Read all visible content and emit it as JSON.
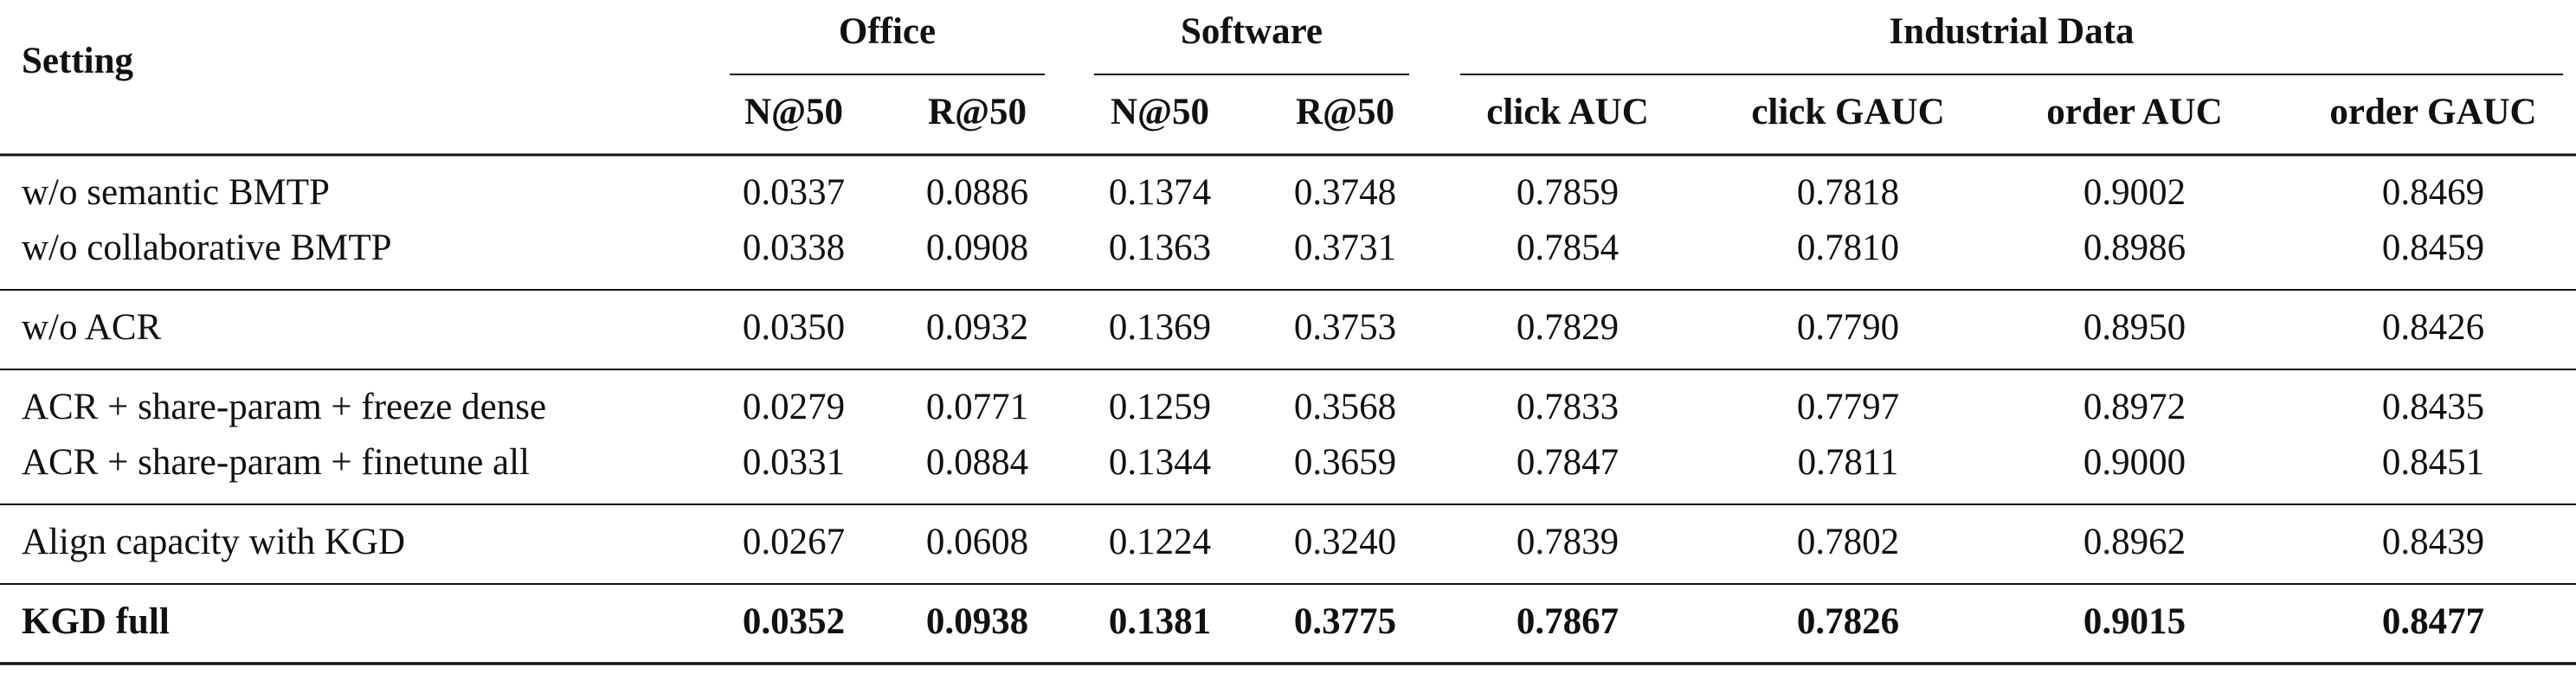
{
  "table": {
    "header": {
      "setting": "Setting",
      "groups": [
        {
          "title": "Office",
          "columns": [
            "N@50",
            "R@50"
          ]
        },
        {
          "title": "Software",
          "columns": [
            "N@50",
            "R@50"
          ]
        },
        {
          "title": "Industrial Data",
          "columns": [
            "click AUC",
            "click GAUC",
            "order AUC",
            "order GAUC"
          ]
        }
      ]
    },
    "row_groups": [
      [
        {
          "setting": "w/o semantic BMTP",
          "values": [
            "0.0337",
            "0.0886",
            "0.1374",
            "0.3748",
            "0.7859",
            "0.7818",
            "0.9002",
            "0.8469"
          ]
        },
        {
          "setting": "w/o collaborative BMTP",
          "values": [
            "0.0338",
            "0.0908",
            "0.1363",
            "0.3731",
            "0.7854",
            "0.7810",
            "0.8986",
            "0.8459"
          ]
        }
      ],
      [
        {
          "setting": "w/o ACR",
          "values": [
            "0.0350",
            "0.0932",
            "0.1369",
            "0.3753",
            "0.7829",
            "0.7790",
            "0.8950",
            "0.8426"
          ]
        }
      ],
      [
        {
          "setting": "ACR + share-param + freeze dense",
          "values": [
            "0.0279",
            "0.0771",
            "0.1259",
            "0.3568",
            "0.7833",
            "0.7797",
            "0.8972",
            "0.8435"
          ]
        },
        {
          "setting": "ACR + share-param + finetune all",
          "values": [
            "0.0331",
            "0.0884",
            "0.1344",
            "0.3659",
            "0.7847",
            "0.7811",
            "0.9000",
            "0.8451"
          ]
        }
      ],
      [
        {
          "setting": "Align capacity with KGD",
          "values": [
            "0.0267",
            "0.0608",
            "0.1224",
            "0.3240",
            "0.7839",
            "0.7802",
            "0.8962",
            "0.8439"
          ]
        }
      ],
      [
        {
          "setting": "KGD full",
          "values": [
            "0.0352",
            "0.0938",
            "0.1381",
            "0.3775",
            "0.7867",
            "0.7826",
            "0.9015",
            "0.8477"
          ]
        }
      ]
    ]
  }
}
